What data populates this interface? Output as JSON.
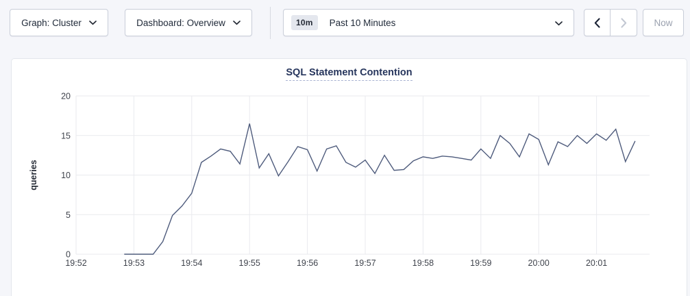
{
  "toolbar": {
    "graph_label": "Graph: Cluster",
    "dashboard_label": "Dashboard: Overview",
    "time_badge": "10m",
    "time_label": "Past 10 Minutes",
    "now_label": "Now"
  },
  "colors": {
    "page_bg": "#f5f6fa",
    "line": "#4e5b7c",
    "title": "#26355c",
    "grid": "#e9eaee",
    "toolbar_text": "#202a39",
    "disabled_text": "#9ba1af",
    "disabled_icon": "#c3c8d3",
    "enabled_icon": "#1c2437"
  },
  "chart_data": {
    "type": "line",
    "title": "SQL Statement Contention",
    "xlabel": "",
    "ylabel": "queries",
    "ylim": [
      0,
      20
    ],
    "yticks": [
      0,
      5,
      10,
      15,
      20
    ],
    "xticks": [
      "19:52",
      "19:53",
      "19:54",
      "19:55",
      "19:56",
      "19:57",
      "19:58",
      "19:59",
      "20:00",
      "20:01"
    ],
    "grid": true,
    "legend_position": "none",
    "series": [
      {
        "name": "SQL Statement Contention",
        "unit": "queries",
        "points": [
          [
            "19:52:50",
            0
          ],
          [
            "19:53:00",
            0
          ],
          [
            "19:53:10",
            0
          ],
          [
            "19:53:20",
            0
          ],
          [
            "19:53:30",
            1.6
          ],
          [
            "19:53:40",
            4.9
          ],
          [
            "19:53:50",
            6.1
          ],
          [
            "19:54:00",
            7.7
          ],
          [
            "19:54:10",
            11.6
          ],
          [
            "19:54:20",
            12.4
          ],
          [
            "19:54:30",
            13.3
          ],
          [
            "19:54:40",
            13
          ],
          [
            "19:54:50",
            11.4
          ],
          [
            "19:55:00",
            16.5
          ],
          [
            "19:55:10",
            10.9
          ],
          [
            "19:55:20",
            12.7
          ],
          [
            "19:55:30",
            9.9
          ],
          [
            "19:55:40",
            11.7
          ],
          [
            "19:55:50",
            13.6
          ],
          [
            "19:56:00",
            13.2
          ],
          [
            "19:56:10",
            10.5
          ],
          [
            "19:56:20",
            13.3
          ],
          [
            "19:56:30",
            13.7
          ],
          [
            "19:56:40",
            11.6
          ],
          [
            "19:56:50",
            11
          ],
          [
            "19:57:00",
            11.9
          ],
          [
            "19:57:10",
            10.2
          ],
          [
            "19:57:20",
            12.5
          ],
          [
            "19:57:30",
            10.6
          ],
          [
            "19:57:40",
            10.7
          ],
          [
            "19:57:50",
            11.8
          ],
          [
            "19:58:00",
            12.3
          ],
          [
            "19:58:10",
            12.1
          ],
          [
            "19:58:20",
            12.4
          ],
          [
            "19:58:30",
            12.3
          ],
          [
            "19:58:40",
            12.1
          ],
          [
            "19:58:50",
            11.9
          ],
          [
            "19:59:00",
            13.3
          ],
          [
            "19:59:10",
            12.1
          ],
          [
            "19:59:20",
            15
          ],
          [
            "19:59:30",
            14
          ],
          [
            "19:59:40",
            12.3
          ],
          [
            "19:59:50",
            15.2
          ],
          [
            "20:00:00",
            14.5
          ],
          [
            "20:00:10",
            11.3
          ],
          [
            "20:00:20",
            14.2
          ],
          [
            "20:00:30",
            13.6
          ],
          [
            "20:00:40",
            15
          ],
          [
            "20:00:50",
            14
          ],
          [
            "20:01:00",
            15.2
          ],
          [
            "20:01:10",
            14.4
          ],
          [
            "20:01:20",
            15.8
          ],
          [
            "20:01:30",
            11.7
          ],
          [
            "20:01:40",
            14.3
          ]
        ]
      }
    ]
  }
}
